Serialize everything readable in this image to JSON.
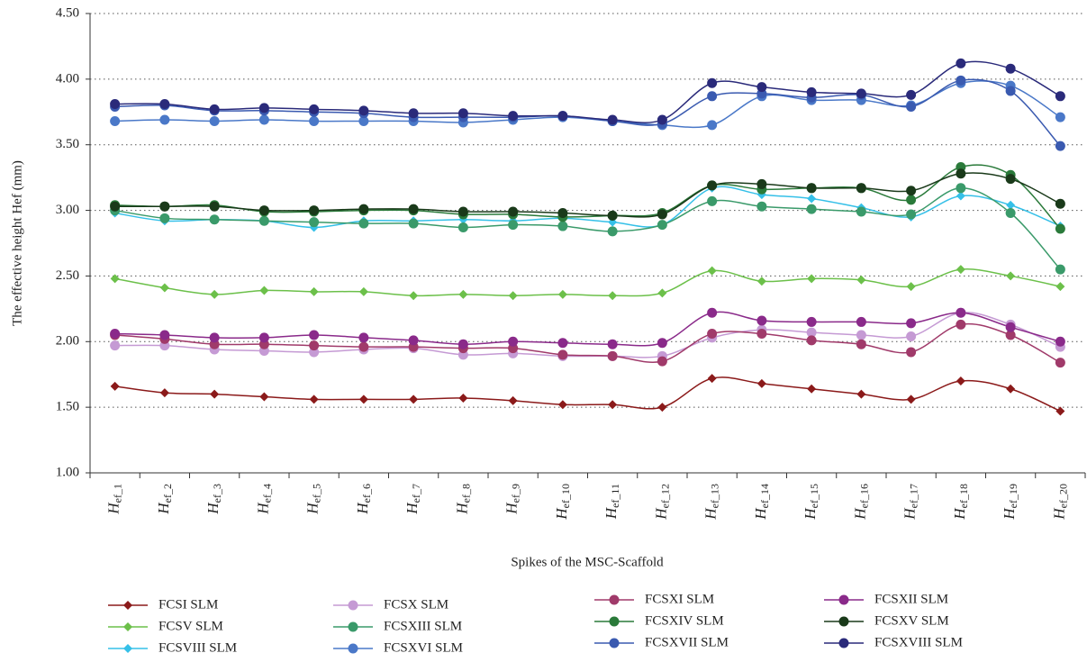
{
  "chart_data": {
    "type": "line",
    "x_label": "Spikes of the MSC-Scaffold",
    "y_label": "The effective height Hef (mm)",
    "categories": [
      "Hef_1",
      "Hef_2",
      "Hef_3",
      "Hef_4",
      "Hef_5",
      "Hef_6",
      "Hef_7",
      "Hef_8",
      "Hef_9",
      "Hef_10",
      "Hef_11",
      "Hef_12",
      "Hef_13",
      "Hef_14",
      "Hef_15",
      "Hef_16",
      "Hef_17",
      "Hef_18",
      "Hef_19",
      "Hef_20"
    ],
    "ylim": [
      1,
      4.5
    ],
    "yticks": [
      {
        "value": 1,
        "label": "1.00"
      },
      {
        "value": 1.5,
        "label": "1.50"
      },
      {
        "value": 2,
        "label": "2.00"
      },
      {
        "value": 2.5,
        "label": "2.50"
      },
      {
        "value": 3,
        "label": "3.00"
      },
      {
        "value": 3.5,
        "label": "3.50"
      },
      {
        "value": 4,
        "label": "4.00"
      },
      {
        "value": 4.5,
        "label": "4.50"
      }
    ],
    "grid": true,
    "series": [
      {
        "name": "FCSI SLM",
        "color": "#8b1a1a",
        "marker": "diamond",
        "values": [
          1.66,
          1.61,
          1.6,
          1.58,
          1.56,
          1.56,
          1.56,
          1.57,
          1.55,
          1.52,
          1.52,
          1.5,
          1.72,
          1.68,
          1.64,
          1.6,
          1.56,
          1.7,
          1.64,
          1.47
        ]
      },
      {
        "name": "FCSV SLM",
        "color": "#6cc04a",
        "marker": "diamond",
        "values": [
          2.48,
          2.41,
          2.36,
          2.39,
          2.38,
          2.38,
          2.35,
          2.36,
          2.35,
          2.36,
          2.35,
          2.37,
          2.54,
          2.46,
          2.48,
          2.47,
          2.42,
          2.55,
          2.5,
          2.42
        ]
      },
      {
        "name": "FCSVIII SLM",
        "color": "#35c0e8",
        "marker": "diamond",
        "values": [
          2.98,
          2.92,
          2.93,
          2.92,
          2.87,
          2.92,
          2.92,
          2.93,
          2.92,
          2.94,
          2.91,
          2.89,
          3.17,
          3.12,
          3.09,
          3.02,
          2.95,
          3.11,
          3.04,
          2.88
        ]
      },
      {
        "name": "FCSX SLM",
        "color": "#c59ad4",
        "marker": "circle",
        "values": [
          1.97,
          1.97,
          1.94,
          1.93,
          1.92,
          1.94,
          1.95,
          1.9,
          1.91,
          1.89,
          1.89,
          1.89,
          2.03,
          2.09,
          2.07,
          2.05,
          2.04,
          2.22,
          2.13,
          1.96
        ]
      },
      {
        "name": "FCSXIII SLM",
        "color": "#3a9a6a",
        "marker": "circle",
        "values": [
          3.0,
          2.94,
          2.93,
          2.92,
          2.91,
          2.9,
          2.9,
          2.87,
          2.89,
          2.88,
          2.84,
          2.89,
          3.07,
          3.03,
          3.01,
          2.99,
          2.97,
          3.17,
          2.98,
          2.55
        ]
      },
      {
        "name": "FCSXVI SLM",
        "color": "#4a78c8",
        "marker": "circle",
        "values": [
          3.68,
          3.69,
          3.68,
          3.69,
          3.68,
          3.68,
          3.68,
          3.67,
          3.69,
          3.71,
          3.68,
          3.65,
          3.65,
          3.87,
          3.84,
          3.84,
          3.8,
          3.97,
          3.95,
          3.71
        ]
      },
      {
        "name": "FCSXI SLM",
        "color": "#a03a6a",
        "marker": "circle",
        "values": [
          2.05,
          2.02,
          1.98,
          1.98,
          1.97,
          1.96,
          1.96,
          1.95,
          1.95,
          1.9,
          1.89,
          1.85,
          2.06,
          2.06,
          2.01,
          1.98,
          1.92,
          2.13,
          2.05,
          1.84
        ]
      },
      {
        "name": "FCSXIV SLM",
        "color": "#2a7a3a",
        "marker": "circle",
        "values": [
          3.04,
          3.03,
          3.04,
          2.99,
          2.99,
          3.0,
          3.0,
          2.97,
          2.97,
          2.95,
          2.96,
          2.98,
          3.19,
          3.16,
          3.17,
          3.17,
          3.08,
          3.33,
          3.27,
          2.86
        ]
      },
      {
        "name": "FCSXVII SLM",
        "color": "#3a5ab0",
        "marker": "circle",
        "values": [
          3.79,
          3.8,
          3.76,
          3.76,
          3.75,
          3.74,
          3.71,
          3.71,
          3.71,
          3.72,
          3.68,
          3.66,
          3.87,
          3.89,
          3.86,
          3.88,
          3.79,
          3.99,
          3.91,
          3.49
        ]
      },
      {
        "name": "FCSXII SLM",
        "color": "#8a2a8a",
        "marker": "circle",
        "values": [
          2.06,
          2.05,
          2.03,
          2.03,
          2.05,
          2.03,
          2.01,
          1.98,
          2.0,
          1.99,
          1.98,
          1.99,
          2.22,
          2.16,
          2.15,
          2.15,
          2.14,
          2.22,
          2.11,
          2.0
        ]
      },
      {
        "name": "FCSXV SLM",
        "color": "#1a3a1a",
        "marker": "circle",
        "values": [
          3.03,
          3.03,
          3.03,
          3.0,
          3.0,
          3.01,
          3.01,
          2.99,
          2.99,
          2.98,
          2.96,
          2.97,
          3.19,
          3.2,
          3.17,
          3.17,
          3.15,
          3.28,
          3.24,
          3.05
        ]
      },
      {
        "name": "FCSXVIII SLM",
        "color": "#2a2a7a",
        "marker": "circle",
        "values": [
          3.81,
          3.81,
          3.77,
          3.78,
          3.77,
          3.76,
          3.74,
          3.74,
          3.72,
          3.72,
          3.69,
          3.69,
          3.97,
          3.94,
          3.9,
          3.89,
          3.88,
          4.12,
          4.08,
          3.87
        ]
      }
    ]
  }
}
